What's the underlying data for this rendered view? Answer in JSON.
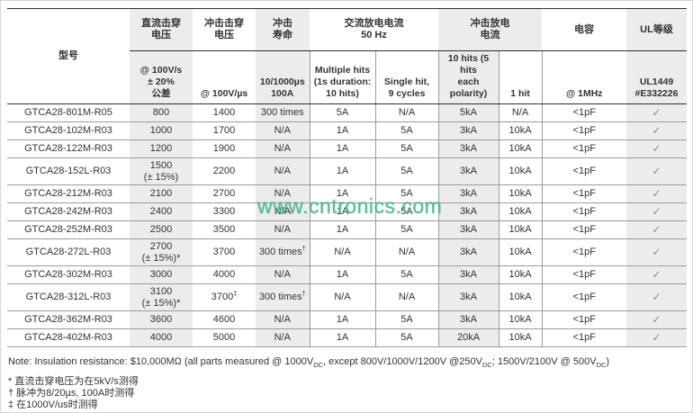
{
  "watermark": {
    "text": "www.cntronics.com",
    "color": "#54bf96"
  },
  "table": {
    "model_header": "型号",
    "groups": [
      {
        "label": "直流击穿\n电压",
        "span": 1,
        "gray": true
      },
      {
        "label": "冲击击穿\n电压",
        "span": 1,
        "gray": false
      },
      {
        "label": "冲击\n寿命",
        "span": 1,
        "gray": true
      },
      {
        "label": "交流放电电流\n50 Hz",
        "span": 2,
        "gray": false
      },
      {
        "label": "冲击放电\n电流",
        "span": 2,
        "gray": true
      },
      {
        "label": "电容",
        "span": 1,
        "gray": false
      },
      {
        "label": "UL等级",
        "span": 1,
        "gray": true
      }
    ],
    "subheaders": [
      "@ 100V/s\n± 20%\n公差",
      "@ 100V/µs",
      "10/1000µs\n100A",
      "Multiple hits\n(1s duration:\n10 hits)",
      "Single hit,\n9 cycles",
      "10 hits (5 hits\neach polarity)",
      "1 hit",
      "@ 1MHz",
      "UL1449\n#E332226"
    ],
    "rows": [
      {
        "model": "GTCA28-801M-R05",
        "cells": [
          "800",
          "1400",
          "300 times",
          "5A",
          "N/A",
          "5kA",
          "N/A",
          "<1pF",
          "✓"
        ],
        "tall": false
      },
      {
        "model": "GTCA28-102M-R03",
        "cells": [
          "1000",
          "1700",
          "N/A",
          "1A",
          "5A",
          "3kA",
          "10kA",
          "<1pF",
          "✓"
        ],
        "tall": false
      },
      {
        "model": "GTCA28-122M-R03",
        "cells": [
          "1200",
          "1900",
          "N/A",
          "1A",
          "5A",
          "3kA",
          "10kA",
          "<1pF",
          "✓"
        ],
        "tall": false
      },
      {
        "model": "GTCA28-152L-R03",
        "cells": [
          "1500\n(± 15%)",
          "2200",
          "N/A",
          "1A",
          "5A",
          "3kA",
          "10kA",
          "<1pF",
          "✓"
        ],
        "tall": true
      },
      {
        "model": "GTCA28-212M-R03",
        "cells": [
          "2100",
          "2700",
          "N/A",
          "1A",
          "5A",
          "3kA",
          "10kA",
          "<1pF",
          "✓"
        ],
        "tall": false
      },
      {
        "model": "GTCA28-242M-R03",
        "cells": [
          "2400",
          "3300",
          "N/A",
          "1A",
          "5A",
          "3kA",
          "10kA",
          "<1pF",
          "✓"
        ],
        "tall": false
      },
      {
        "model": "GTCA28-252M-R03",
        "cells": [
          "2500",
          "3500",
          "N/A",
          "1A",
          "5A",
          "3kA",
          "10kA",
          "<1pF",
          "✓"
        ],
        "tall": false
      },
      {
        "model": "GTCA28-272L-R03",
        "cells": [
          "2700\n(± 15%)*",
          "3700",
          {
            "t": "300 times",
            "sup": "†"
          },
          "N/A",
          "N/A",
          "3kA",
          "10kA",
          "<1pF",
          "✓"
        ],
        "tall": true
      },
      {
        "model": "GTCA28-302M-R03",
        "cells": [
          "3000",
          "4000",
          "N/A",
          "1A",
          "5A",
          "3kA",
          "10kA",
          "<1pF",
          "✓"
        ],
        "tall": false
      },
      {
        "model": "GTCA28-312L-R03",
        "cells": [
          "3100\n(± 15%)*",
          {
            "t": "3700",
            "sup": "‡"
          },
          {
            "t": "300 times",
            "sup": "†"
          },
          "N/A",
          "N/A",
          "3kA",
          "10kA",
          "<1pF",
          "✓"
        ],
        "tall": true
      },
      {
        "model": "GTCA28-362M-R03",
        "cells": [
          "3600",
          "4600",
          "N/A",
          "1A",
          "5A",
          "3kA",
          "10kA",
          "<1pF",
          "✓"
        ],
        "tall": false
      },
      {
        "model": "GTCA28-402M-R03",
        "cells": [
          "4000",
          "5000",
          "N/A",
          "1A",
          "5A",
          "20kA",
          "10kA",
          "<1pF",
          "✓"
        ],
        "tall": false
      }
    ]
  },
  "notes": {
    "main_parts": [
      {
        "t": "Note: Insulation resistance: $10,000MΩ (all parts measured @ 1000V"
      },
      {
        "sub": "DC"
      },
      {
        "t": ", except 800V/1000V/1200V @250V"
      },
      {
        "sub": "DC"
      },
      {
        "t": "; 1500V/2100V @ 500V"
      },
      {
        "sub": "DC"
      },
      {
        "t": ")"
      }
    ],
    "footnotes": [
      {
        "marker": "*",
        "text": " 直流击穿电压为在5kV/s测得"
      },
      {
        "marker": "†",
        "text": " 脉冲为8/20µs, 100A时测得"
      },
      {
        "marker": "‡",
        "text": " 在1000V/us时测得"
      }
    ]
  }
}
